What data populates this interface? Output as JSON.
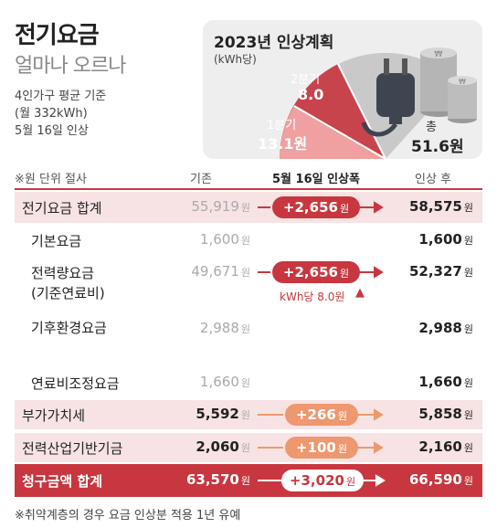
{
  "header": {
    "title": "전기요금",
    "subtitle": "얼마나 오르나",
    "info_lines": [
      "4인가구 평균 기준",
      "(월 332kWh)",
      "5월 16일 인상"
    ]
  },
  "chart": {
    "title": "2023년 인상계획",
    "unit": "(kWh당)",
    "q1_label": "1분기",
    "q1_value": "13.1원",
    "q2_label": "2분기",
    "q2_value": "8.0",
    "total_label": "총",
    "total_value": "51.6원"
  },
  "chart_data": {
    "type": "pie",
    "title": "2023년 인상계획",
    "unit": "(kWh당)",
    "labels": [
      "1분기",
      "2분기"
    ],
    "values": [
      13.1,
      8.0
    ],
    "total": 51.6,
    "colors": [
      "#f0a0a0",
      "#c8444d",
      "#c9c9c9"
    ]
  },
  "table": {
    "unit_note": "※원 단위 절사",
    "col_before": "기존",
    "col_change": "5월 16일 인상폭",
    "col_after": "인상 후",
    "won": "원",
    "rows": [
      {
        "label": "전기요금 합계",
        "before": "55,919",
        "change": "+2,656",
        "after": "58,575",
        "note": ""
      },
      {
        "label": "기본요금",
        "before": "1,600",
        "change": "",
        "after": "1,600",
        "note": ""
      },
      {
        "label": "전력량요금",
        "label2": "(기준연료비)",
        "before": "49,671",
        "change": "+2,656",
        "after": "52,327",
        "note": "kWh당 8.0원"
      },
      {
        "label": "기후환경요금",
        "before": "2,988",
        "change": "",
        "after": "2,988",
        "note": ""
      },
      {
        "label": "연료비조정요금",
        "before": "1,660",
        "change": "",
        "after": "1,660",
        "note": ""
      },
      {
        "label": "부가가치세",
        "before": "5,592",
        "change": "+266",
        "after": "5,858",
        "note": ""
      },
      {
        "label": "전력산업기반기금",
        "before": "2,060",
        "change": "+100",
        "after": "2,160",
        "note": ""
      },
      {
        "label": "청구금액 합계",
        "before": "63,570",
        "change": "+3,020",
        "after": "66,590",
        "note": ""
      }
    ]
  },
  "footnote": "※취약계층의 경우 요금 인상분 적용 1년 유예",
  "colors": {
    "accent_red": "#c8373f",
    "light_pink": "#f7e3e3",
    "orange_pill": "#ee9870",
    "grey_text": "#aaaaaa"
  },
  "icons": [
    "plug-icon",
    "coin-stack-icon",
    "up-arrow-icon"
  ]
}
